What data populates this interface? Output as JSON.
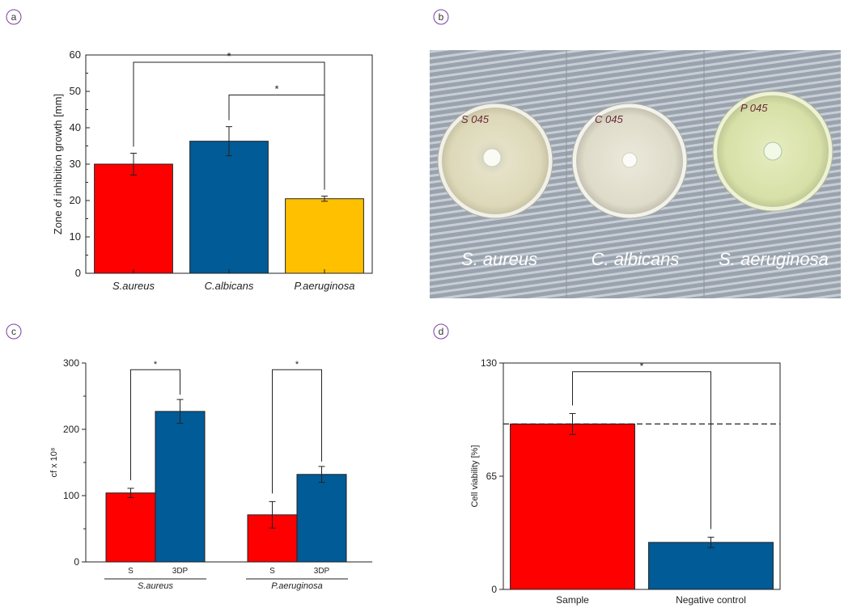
{
  "panels": {
    "a": "a",
    "b": "b",
    "c": "c",
    "d": "d"
  },
  "colors": {
    "red": "#ff0000",
    "blue": "#005b96",
    "yellow": "#ffc000"
  },
  "photo": {
    "captions": [
      "S. aureus",
      "C. albicans",
      "S. aeruginosa"
    ],
    "plate_labels": [
      "S 045",
      "C 045",
      "P 045"
    ]
  },
  "chart_data": [
    {
      "panel": "a",
      "type": "bar",
      "ylabel": "Zone of inhibition growth [mm]",
      "ylim": [
        0,
        60
      ],
      "yticks": [
        0,
        10,
        20,
        30,
        40,
        50,
        60
      ],
      "categories": [
        "S.aureus",
        "C.albicans",
        "P.aeruginosa"
      ],
      "values": [
        30,
        36.3,
        20.5
      ],
      "errors": [
        3,
        4,
        0.7
      ],
      "bar_colors": [
        "#ff0000",
        "#005b96",
        "#ffc000"
      ],
      "significance": [
        {
          "from": "S.aureus",
          "to": "P.aeruginosa",
          "label": "*"
        },
        {
          "from": "C.albicans",
          "to": "P.aeruginosa",
          "label": "*"
        }
      ]
    },
    {
      "panel": "c",
      "type": "bar",
      "ylabel": "cf x 10⁸",
      "ylim": [
        0,
        300
      ],
      "yticks": [
        0,
        100,
        200,
        300
      ],
      "groups": [
        "S.aureus",
        "P.aeruginosa"
      ],
      "categories": [
        "S",
        "3DP"
      ],
      "series": [
        {
          "name": "S",
          "values": [
            104,
            71
          ],
          "errors": [
            7,
            20
          ]
        },
        {
          "name": "3DP",
          "values": [
            227,
            132
          ],
          "errors": [
            18,
            12
          ]
        }
      ],
      "series_colors": [
        "#ff0000",
        "#005b96"
      ],
      "significance": [
        {
          "group": "S.aureus",
          "label": "*"
        },
        {
          "group": "P.aeruginosa",
          "label": "*"
        }
      ]
    },
    {
      "panel": "d",
      "type": "bar",
      "ylabel": "Cell viability [%]",
      "ylim": [
        0,
        130
      ],
      "yticks": [
        0,
        65,
        130
      ],
      "categories": [
        "Sample",
        "Negative control"
      ],
      "values": [
        95,
        27
      ],
      "errors": [
        6,
        3
      ],
      "bar_colors": [
        "#ff0000",
        "#005b96"
      ],
      "reference_line": 95,
      "significance": [
        {
          "from": "Sample",
          "to": "Negative control",
          "label": "*"
        }
      ]
    }
  ]
}
